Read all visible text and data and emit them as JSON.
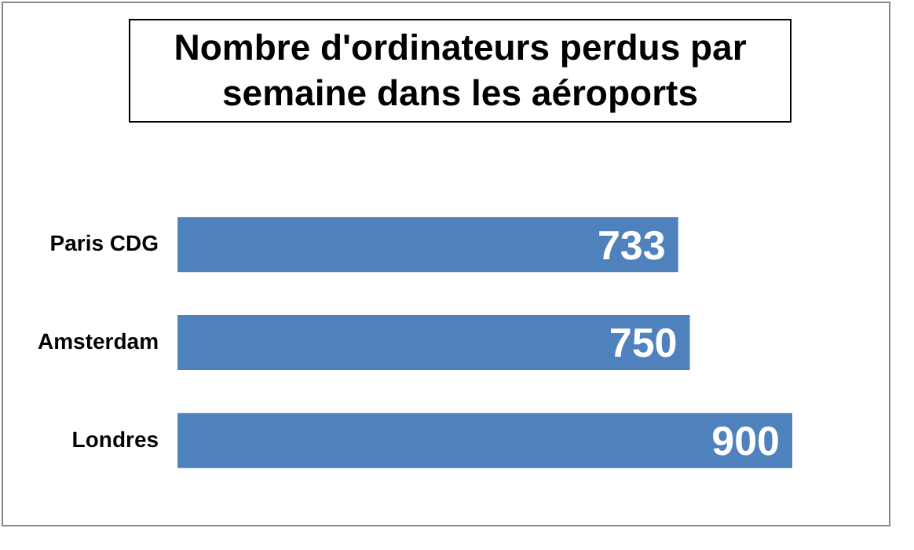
{
  "chart_data": {
    "type": "bar",
    "orientation": "horizontal",
    "title": "Nombre d'ordinateurs perdus par semaine dans les aéroports",
    "categories": [
      "Paris CDG",
      "Amsterdam",
      "Londres"
    ],
    "values": [
      733,
      750,
      900
    ],
    "color": "#4f81bd",
    "data_labels": true,
    "legend": false
  }
}
